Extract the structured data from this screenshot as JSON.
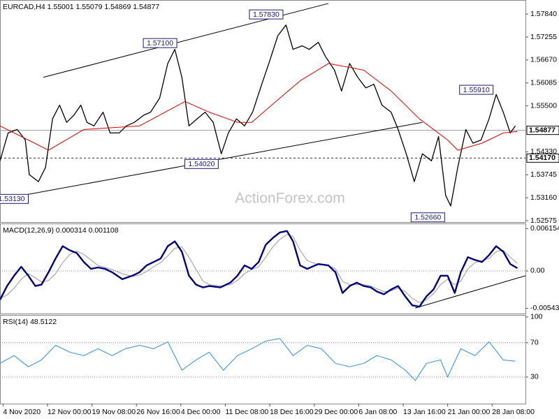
{
  "chart_data": [
    {
      "type": "line",
      "title": "EURCAD,H4 1.55001 1.55079 1.54869 1.54877",
      "watermark": "ActionForex.com",
      "xlim": [
        0,
        520
      ],
      "ylim": [
        1.5254,
        1.5818
      ],
      "yticks": [
        {
          "value": 1.5784,
          "label": "1.57840"
        },
        {
          "value": 1.57255,
          "label": "1.57255"
        },
        {
          "value": 1.5667,
          "label": "1.56670"
        },
        {
          "value": 1.56085,
          "label": "1.56085"
        },
        {
          "value": 1.555,
          "label": "1.55500"
        },
        {
          "value": 1.5433,
          "label": "1.54330"
        },
        {
          "value": 1.53745,
          "label": "1.53745"
        },
        {
          "value": 1.5316,
          "label": "1.53160"
        },
        {
          "value": 1.52575,
          "label": "1.52575"
        }
      ],
      "series": [
        {
          "color": "#000000",
          "width": 1.3,
          "x": [
            0,
            8,
            17,
            25,
            29,
            38,
            45,
            52,
            59,
            66,
            73,
            80,
            86,
            93,
            102,
            109,
            118,
            125,
            133,
            142,
            149,
            158,
            166,
            173,
            180,
            187,
            195,
            203,
            211,
            219,
            226,
            234,
            242,
            250,
            259,
            266,
            275,
            283,
            290,
            299,
            306,
            315,
            322,
            331,
            338,
            346,
            354,
            362,
            370,
            378,
            387,
            394,
            402,
            410,
            418,
            427,
            434,
            441,
            446,
            453,
            461,
            468,
            476,
            484,
            491,
            498,
            505,
            510
          ],
          "values": [
            1.541,
            1.5481,
            1.549,
            1.5463,
            1.5375,
            1.5357,
            1.5393,
            1.5517,
            1.5552,
            1.5508,
            1.5526,
            1.5552,
            1.5508,
            1.5499,
            1.5534,
            1.5481,
            1.5481,
            1.5499,
            1.5508,
            1.5526,
            1.5534,
            1.557,
            1.5658,
            1.5694,
            1.5623,
            1.5499,
            1.5517,
            1.5534,
            1.5508,
            1.5428,
            1.5481,
            1.5517,
            1.5499,
            1.5534,
            1.5605,
            1.5658,
            1.5729,
            1.5756,
            1.5694,
            1.5703,
            1.5694,
            1.5712,
            1.5676,
            1.5641,
            1.5588,
            1.5658,
            1.5623,
            1.5596,
            1.5605,
            1.5552,
            1.5534,
            1.549,
            1.5428,
            1.5357,
            1.5428,
            1.541,
            1.5472,
            1.5322,
            1.5295,
            1.5393,
            1.549,
            1.5455,
            1.5463,
            1.5517,
            1.5579,
            1.5534,
            1.5481,
            1.5499
          ]
        },
        {
          "color": "#dd0000",
          "width": 1,
          "x": [
            0,
            28,
            48,
            83,
            138,
            183,
            207,
            235,
            249,
            277,
            297,
            325,
            360,
            387,
            415,
            443,
            453,
            477,
            498,
            512
          ],
          "values": [
            1.5499,
            1.5463,
            1.5437,
            1.549,
            1.5499,
            1.5561,
            1.5534,
            1.5508,
            1.5508,
            1.557,
            1.5614,
            1.5658,
            1.5641,
            1.5588,
            1.5517,
            1.5463,
            1.5437,
            1.5455,
            1.5481,
            1.5485
          ]
        }
      ],
      "trendlines": [
        {
          "x": [
            43,
            325
          ],
          "values": [
            1.5623,
            1.5811
          ]
        },
        {
          "x": [
            3,
            418
          ],
          "values": [
            1.5313,
            1.5508
          ]
        }
      ],
      "price_lines": [
        {
          "value": 1.54877,
          "label": "1.54877",
          "dashed": false
        },
        {
          "value": 1.5417,
          "label": "1.54170",
          "dashed": true
        }
      ],
      "annotations": [
        {
          "label": "1.57830",
          "value": 1.5783,
          "x": 280
        },
        {
          "label": "1.57100",
          "value": 1.571,
          "x": 175
        },
        {
          "label": "1.55910",
          "value": 1.5591,
          "x": 488
        },
        {
          "label": "1.54020",
          "value": 1.5402,
          "x": 216
        },
        {
          "label": "1.52660",
          "value": 1.5266,
          "x": 440
        },
        {
          "label": "1.53130",
          "value": 1.5313,
          "x": 28
        }
      ]
    },
    {
      "type": "line",
      "title": "MACD(12,26,9) 0.000314 0.001108",
      "xlim": [
        0,
        520
      ],
      "ylim": [
        -0.0062,
        0.0068
      ],
      "yticks": [
        0.006154,
        {
          "value": 0,
          "label": "0.00"
        },
        -0.005434
      ],
      "levels": [
        0
      ],
      "series": [
        {
          "color": "#999999",
          "width": 1,
          "x": [
            0,
            7,
            14,
            21,
            28,
            35,
            41,
            48,
            55,
            62,
            69,
            76,
            83,
            90,
            97,
            104,
            111,
            121,
            131,
            138,
            145,
            152,
            159,
            166,
            173,
            180,
            187,
            194,
            201,
            207,
            218,
            228,
            235,
            242,
            249,
            256,
            263,
            270,
            277,
            284,
            290,
            297,
            304,
            315,
            325,
            332,
            339,
            346,
            353,
            360,
            367,
            373,
            380,
            387,
            394,
            401,
            408,
            415,
            422,
            429,
            436,
            443,
            450,
            456,
            463,
            470,
            477,
            484,
            491,
            498,
            505,
            512
          ],
          "values": [
            -0.004,
            -0.0035,
            -0.0025,
            -0.0012,
            -0.0004,
            -0.001,
            -0.0016,
            -0.0014,
            -0.0004,
            0.0012,
            0.0024,
            0.0029,
            0.0024,
            0.0016,
            0.0008,
            0.0005,
            0.0002,
            -0.0004,
            -0.0008,
            -0.0006,
            -0.0001,
            0.0006,
            0.0012,
            0.0022,
            0.0033,
            0.0035,
            0.002,
            0.0002,
            -0.0015,
            -0.002,
            -0.0022,
            -0.002,
            -0.0014,
            -0.0004,
            0.0002,
            0.0006,
            0.002,
            0.0035,
            0.0046,
            0.0053,
            0.005,
            0.003,
            0.0015,
            0.0009,
            0.0008,
            0.0003,
            -0.0015,
            -0.002,
            -0.002,
            -0.002,
            -0.0022,
            -0.0026,
            -0.003,
            -0.0029,
            -0.0025,
            -0.003,
            -0.004,
            -0.0046,
            -0.0042,
            -0.0033,
            -0.002,
            -0.0012,
            -0.002,
            -0.0015,
            0.0003,
            0.0012,
            0.0015,
            0.0018,
            0.0028,
            0.003,
            0.002,
            0.0011
          ]
        },
        {
          "color": "#000080",
          "width": 2.4,
          "x": [
            0,
            7,
            14,
            21,
            28,
            35,
            41,
            48,
            55,
            62,
            69,
            76,
            83,
            90,
            97,
            104,
            111,
            121,
            131,
            138,
            145,
            152,
            159,
            166,
            173,
            180,
            187,
            194,
            201,
            207,
            218,
            228,
            235,
            242,
            249,
            256,
            263,
            270,
            277,
            284,
            290,
            297,
            304,
            315,
            325,
            332,
            339,
            346,
            353,
            360,
            367,
            373,
            380,
            387,
            394,
            401,
            408,
            415,
            422,
            429,
            436,
            443,
            450,
            456,
            463,
            470,
            477,
            484,
            491,
            498,
            505,
            512
          ],
          "values": [
            -0.0042,
            -0.0022,
            -0.0007,
            0.0006,
            -0.0007,
            -0.0022,
            -0.002,
            -0.0002,
            0.0018,
            0.0036,
            0.003,
            0.0026,
            0.0013,
            0.0003,
            0.0005,
            0.0003,
            -0.0002,
            -0.0012,
            -0.0007,
            -0.0002,
            0.0008,
            0.0013,
            0.0018,
            0.0036,
            0.0043,
            0.0028,
            -0.0007,
            -0.002,
            -0.0024,
            -0.0022,
            -0.0024,
            -0.0017,
            -0.0007,
            0.0008,
            0.0003,
            0.0013,
            0.0038,
            0.0048,
            0.0056,
            0.0058,
            0.0043,
            0.0008,
            0.0003,
            0.001,
            0.0008,
            -0.0002,
            -0.0032,
            -0.0022,
            -0.0017,
            -0.0022,
            -0.0024,
            -0.003,
            -0.0034,
            -0.0027,
            -0.0022,
            -0.0037,
            -0.005,
            -0.0052,
            -0.0037,
            -0.0027,
            -0.0007,
            -0.0007,
            -0.0032,
            -0.0002,
            0.002,
            0.0016,
            0.0013,
            0.0023,
            0.0036,
            0.0028,
            0.001,
            0.0004
          ]
        }
      ],
      "trendlines": [
        {
          "x": [
            411,
            520
          ],
          "values": [
            -0.0054,
            -0.0007
          ]
        }
      ]
    },
    {
      "type": "line",
      "title": "RSI(14) 48.5122",
      "xlim": [
        0,
        520
      ],
      "ylim": [
        -1,
        101.6
      ],
      "yticks": [
        100,
        70,
        30
      ],
      "levels": [
        70,
        30
      ],
      "xticks": [
        {
          "value": 3,
          "label": "4 Nov 2020"
        },
        {
          "value": 47,
          "label": "12 Nov 00:00"
        },
        {
          "value": 91,
          "label": "19 Nov 08:00"
        },
        {
          "value": 135,
          "label": "26 Nov 16:00"
        },
        {
          "value": 179,
          "label": "4 Dec 00:00"
        },
        {
          "value": 223,
          "label": "11 Dec 08:00"
        },
        {
          "value": 267,
          "label": "18 Dec 16:00"
        },
        {
          "value": 311,
          "label": "29 Dec 00:00"
        },
        {
          "value": 355,
          "label": "6 Jan 08:00"
        },
        {
          "value": 399,
          "label": "13 Jan 16:00"
        },
        {
          "value": 443,
          "label": "21 Jan 00:00"
        },
        {
          "value": 487,
          "label": "28 Jan 08:00"
        }
      ],
      "series": [
        {
          "color": "#2f8fd8",
          "width": 1,
          "x": [
            0,
            14,
            28,
            41,
            55,
            69,
            83,
            97,
            111,
            124,
            138,
            152,
            166,
            180,
            194,
            207,
            221,
            235,
            249,
            263,
            277,
            290,
            304,
            318,
            332,
            346,
            360,
            373,
            387,
            401,
            411,
            422,
            436,
            443,
            456,
            470,
            484,
            498,
            510
          ],
          "values": [
            46,
            55,
            42,
            50,
            67,
            59,
            55,
            63,
            55,
            63,
            67,
            63,
            71,
            38,
            50,
            59,
            38,
            55,
            63,
            72,
            75,
            55,
            67,
            63,
            46,
            42,
            46,
            55,
            50,
            38,
            26,
            46,
            50,
            30,
            63,
            55,
            71,
            50,
            48.5
          ]
        }
      ]
    }
  ]
}
